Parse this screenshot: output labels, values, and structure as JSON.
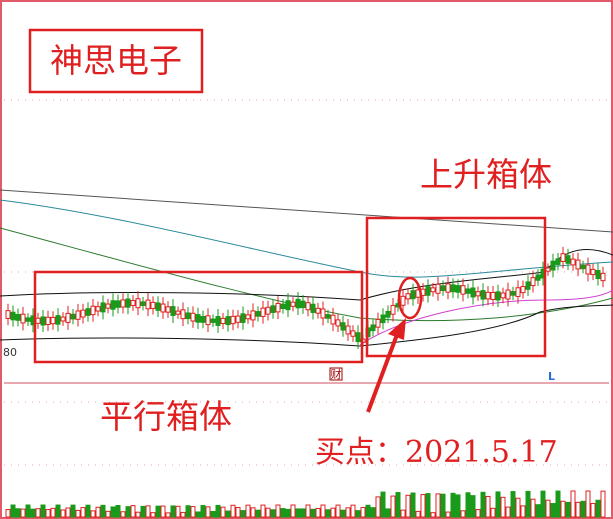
{
  "title": "神思电子",
  "annotations": {
    "rising_box": "上升箱体",
    "flat_box": "平行箱体",
    "buy_point": "买点：2021.5.17"
  },
  "price_label": "80",
  "markers": {
    "finance": "财",
    "limit": "L"
  }
}
